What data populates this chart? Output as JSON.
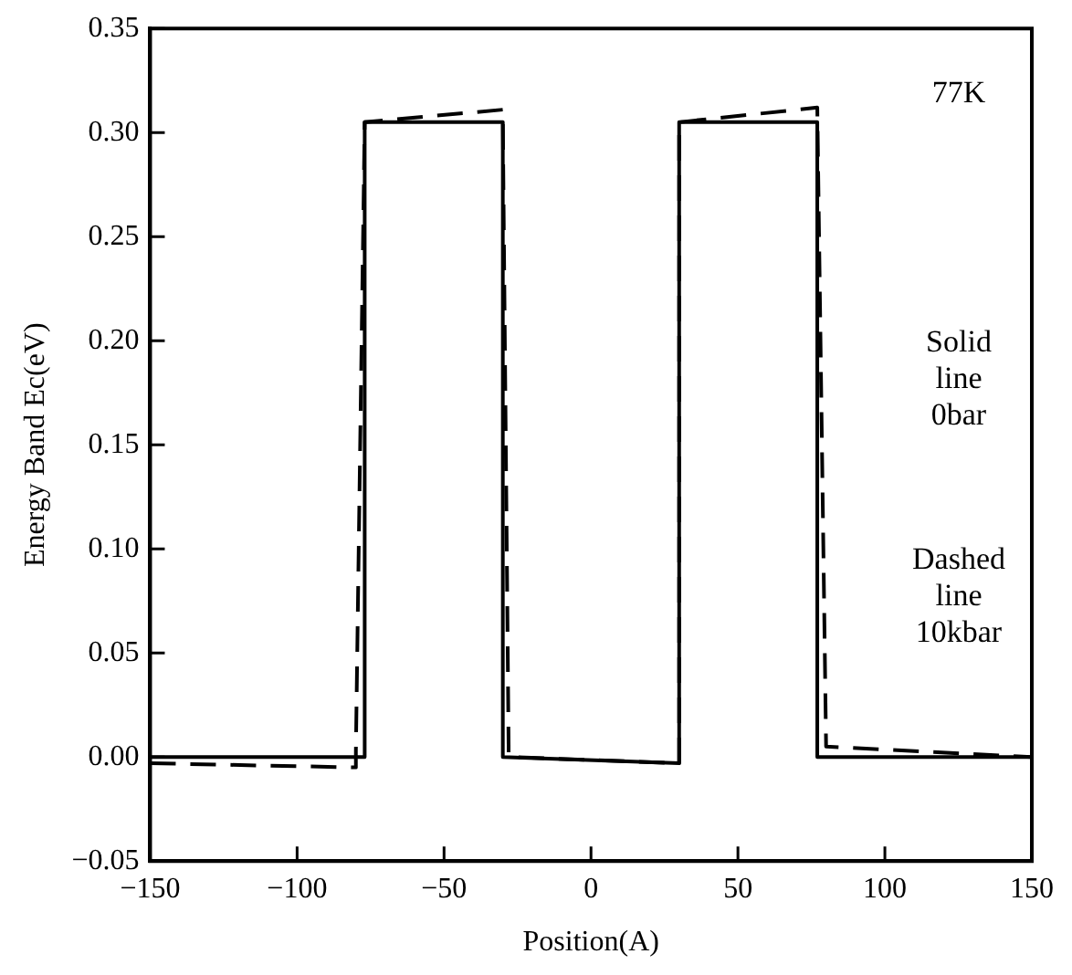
{
  "chart_data": {
    "type": "line",
    "xlabel": "Position(A)",
    "ylabel": "Energy Band Ec(eV)",
    "xlim": [
      -150,
      150
    ],
    "xticks": [
      {
        "value": -150,
        "label": "−150"
      },
      {
        "value": -100,
        "label": "−100"
      },
      {
        "value": -50,
        "label": "−50"
      },
      0,
      50,
      100,
      150
    ],
    "ylim": [
      -0.05,
      0.35
    ],
    "yticks": [
      {
        "value": -0.05,
        "label": "−0.05"
      },
      {
        "value": 0,
        "label": "0.00"
      },
      {
        "value": 0.05,
        "label": "0.05"
      },
      {
        "value": 0.1,
        "label": "0.10"
      },
      {
        "value": 0.15,
        "label": "0.15"
      },
      {
        "value": 0.2,
        "label": "0.20"
      },
      {
        "value": 0.25,
        "label": "0.25"
      },
      {
        "value": 0.3,
        "label": "0.30"
      },
      {
        "value": 0.35,
        "label": "0.35"
      }
    ],
    "grid": false,
    "legend": false,
    "marker": "none",
    "series": [
      {
        "color": "#000000",
        "line_style": "solid",
        "x": [
          -150,
          -77,
          -77,
          -30,
          -30,
          30,
          30,
          77,
          77,
          150
        ],
        "values": [
          0,
          0,
          0.305,
          0.305,
          0,
          -0.003,
          0.305,
          0.305,
          0,
          0
        ]
      },
      {
        "color": "#000000",
        "line_style": "dashed",
        "x": [
          -150,
          -80,
          -80,
          -77,
          -30,
          -30,
          -28,
          30,
          30,
          77,
          80,
          150
        ],
        "values": [
          -0.003,
          -0.005,
          0.003,
          0.305,
          0.311,
          0.305,
          0,
          -0.003,
          0.305,
          0.312,
          0.005,
          0.0
        ]
      }
    ],
    "annotations": [
      "77K",
      "Solid\nline\n0bar",
      "Dashed\nline\n10kbar"
    ]
  }
}
